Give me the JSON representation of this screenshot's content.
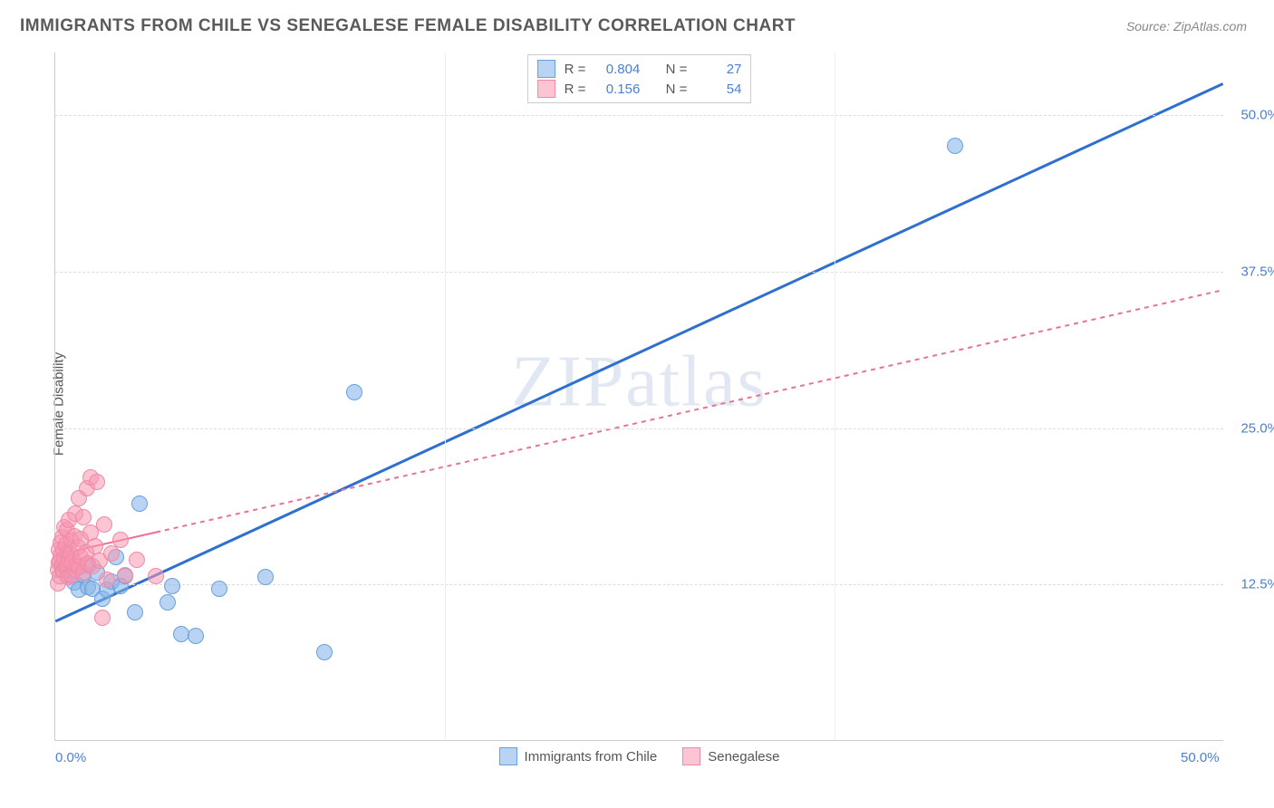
{
  "header": {
    "title": "IMMIGRANTS FROM CHILE VS SENEGALESE FEMALE DISABILITY CORRELATION CHART",
    "source_label": "Source",
    "source_value": "ZipAtlas.com"
  },
  "chart": {
    "type": "scatter",
    "ylabel": "Female Disability",
    "xlim": [
      0,
      50
    ],
    "ylim": [
      0,
      55
    ],
    "background_color": "#ffffff",
    "grid_color": "#dddddd",
    "axis_color": "#cccccc",
    "tick_color": "#4a7fd6",
    "xticks": [
      {
        "value": 0,
        "label": "0.0%"
      },
      {
        "value": 50,
        "label": "50.0%"
      }
    ],
    "yticks": [
      {
        "value": 12.5,
        "label": "12.5%"
      },
      {
        "value": 25.0,
        "label": "25.0%"
      },
      {
        "value": 37.5,
        "label": "37.5%"
      },
      {
        "value": 50.0,
        "label": "50.0%"
      }
    ],
    "series": [
      {
        "name": "Immigrants from Chile",
        "marker_fill": "rgba(127,177,232,0.55)",
        "marker_stroke": "#6aa0dd",
        "marker_radius": 9,
        "line_color": "#2f6fd0",
        "line_width": 3,
        "line_dash": "none",
        "regression": {
          "x1": 0,
          "y1": 9.5,
          "x2": 50,
          "y2": 52.5,
          "extrapolate_from_x": 0
        },
        "solid_until_x": 50,
        "stats": {
          "R": "0.804",
          "N": "27"
        },
        "points": [
          {
            "x": 0.3,
            "y": 13.5
          },
          {
            "x": 0.6,
            "y": 13.2
          },
          {
            "x": 0.8,
            "y": 12.6
          },
          {
            "x": 1.0,
            "y": 13.8
          },
          {
            "x": 1.0,
            "y": 12.0
          },
          {
            "x": 1.2,
            "y": 13.2
          },
          {
            "x": 1.4,
            "y": 12.2
          },
          {
            "x": 1.4,
            "y": 14.0
          },
          {
            "x": 1.6,
            "y": 12.1
          },
          {
            "x": 1.8,
            "y": 13.4
          },
          {
            "x": 2.0,
            "y": 11.3
          },
          {
            "x": 2.2,
            "y": 12.0
          },
          {
            "x": 2.4,
            "y": 12.7
          },
          {
            "x": 2.6,
            "y": 14.6
          },
          {
            "x": 2.8,
            "y": 12.3
          },
          {
            "x": 3.0,
            "y": 13.1
          },
          {
            "x": 3.4,
            "y": 10.2
          },
          {
            "x": 3.6,
            "y": 18.9
          },
          {
            "x": 4.8,
            "y": 11.0
          },
          {
            "x": 5.0,
            "y": 12.3
          },
          {
            "x": 5.4,
            "y": 8.5
          },
          {
            "x": 6.0,
            "y": 8.3
          },
          {
            "x": 7.0,
            "y": 12.1
          },
          {
            "x": 9.0,
            "y": 13.0
          },
          {
            "x": 11.5,
            "y": 7.0
          },
          {
            "x": 12.8,
            "y": 27.8
          },
          {
            "x": 38.5,
            "y": 47.5
          }
        ]
      },
      {
        "name": "Senegalese",
        "marker_fill": "rgba(248,150,175,0.55)",
        "marker_stroke": "#ef8aa8",
        "marker_radius": 9,
        "line_color": "#ef6f93",
        "line_width": 2,
        "line_dash": "5,5",
        "regression": {
          "x1": 0,
          "y1": 14.8,
          "x2": 50,
          "y2": 36.0,
          "extrapolate_from_x": 4.3
        },
        "solid_until_x": 4.3,
        "stats": {
          "R": "0.156",
          "N": "54"
        },
        "points": [
          {
            "x": 0.1,
            "y": 12.5
          },
          {
            "x": 0.1,
            "y": 13.6
          },
          {
            "x": 0.15,
            "y": 14.2
          },
          {
            "x": 0.15,
            "y": 15.2
          },
          {
            "x": 0.2,
            "y": 14.3
          },
          {
            "x": 0.2,
            "y": 13.1
          },
          {
            "x": 0.25,
            "y": 14.8
          },
          {
            "x": 0.25,
            "y": 15.8
          },
          {
            "x": 0.3,
            "y": 14.0
          },
          {
            "x": 0.3,
            "y": 16.2
          },
          {
            "x": 0.35,
            "y": 13.5
          },
          {
            "x": 0.35,
            "y": 15.2
          },
          {
            "x": 0.4,
            "y": 14.5
          },
          {
            "x": 0.4,
            "y": 17.0
          },
          {
            "x": 0.45,
            "y": 13.8
          },
          {
            "x": 0.45,
            "y": 15.6
          },
          {
            "x": 0.5,
            "y": 14.0
          },
          {
            "x": 0.5,
            "y": 16.8
          },
          {
            "x": 0.55,
            "y": 13.0
          },
          {
            "x": 0.55,
            "y": 15.0
          },
          {
            "x": 0.6,
            "y": 14.3
          },
          {
            "x": 0.6,
            "y": 17.6
          },
          {
            "x": 0.65,
            "y": 14.9
          },
          {
            "x": 0.7,
            "y": 13.2
          },
          {
            "x": 0.7,
            "y": 15.9
          },
          {
            "x": 0.75,
            "y": 14.2
          },
          {
            "x": 0.8,
            "y": 16.3
          },
          {
            "x": 0.85,
            "y": 13.6
          },
          {
            "x": 0.85,
            "y": 18.1
          },
          {
            "x": 0.9,
            "y": 14.0
          },
          {
            "x": 0.95,
            "y": 15.4
          },
          {
            "x": 1.0,
            "y": 13.8
          },
          {
            "x": 1.0,
            "y": 19.3
          },
          {
            "x": 1.1,
            "y": 14.6
          },
          {
            "x": 1.1,
            "y": 16.1
          },
          {
            "x": 1.2,
            "y": 13.4
          },
          {
            "x": 1.2,
            "y": 17.8
          },
          {
            "x": 1.3,
            "y": 15.0
          },
          {
            "x": 1.35,
            "y": 20.1
          },
          {
            "x": 1.4,
            "y": 14.1
          },
          {
            "x": 1.5,
            "y": 16.6
          },
          {
            "x": 1.5,
            "y": 21.0
          },
          {
            "x": 1.6,
            "y": 13.9
          },
          {
            "x": 1.7,
            "y": 15.5
          },
          {
            "x": 1.8,
            "y": 20.6
          },
          {
            "x": 1.9,
            "y": 14.3
          },
          {
            "x": 2.0,
            "y": 9.8
          },
          {
            "x": 2.1,
            "y": 17.2
          },
          {
            "x": 2.2,
            "y": 12.8
          },
          {
            "x": 2.4,
            "y": 14.9
          },
          {
            "x": 2.8,
            "y": 16.0
          },
          {
            "x": 3.0,
            "y": 13.2
          },
          {
            "x": 3.5,
            "y": 14.4
          },
          {
            "x": 4.3,
            "y": 13.1
          }
        ]
      }
    ],
    "stats_box": {
      "rows": [
        {
          "swatch_fill": "rgba(127,177,232,0.55)",
          "swatch_stroke": "#6aa0dd",
          "R": "0.804",
          "N": "27"
        },
        {
          "swatch_fill": "rgba(248,150,175,0.55)",
          "swatch_stroke": "#ef8aa8",
          "R": "0.156",
          "N": "54"
        }
      ],
      "labels": {
        "R": "R =",
        "N": "N ="
      }
    },
    "legend": [
      {
        "swatch_fill": "rgba(127,177,232,0.55)",
        "swatch_stroke": "#6aa0dd",
        "label": "Immigrants from Chile"
      },
      {
        "swatch_fill": "rgba(248,150,175,0.55)",
        "swatch_stroke": "#ef8aa8",
        "label": "Senegalese"
      }
    ],
    "watermark": {
      "part1": "ZIP",
      "part2": "atlas"
    }
  }
}
